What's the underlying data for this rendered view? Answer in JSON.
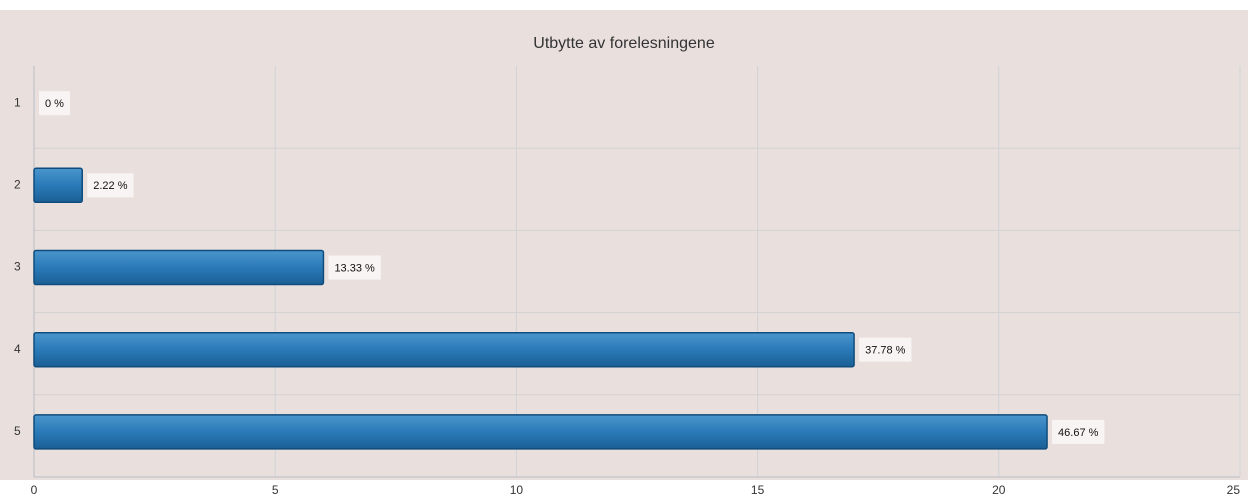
{
  "chart_data": {
    "type": "hbar",
    "title": "Utbytte av forelesningene",
    "categories": [
      "1",
      "2",
      "3",
      "4",
      "5"
    ],
    "values": [
      0,
      1,
      6,
      17,
      21
    ],
    "data_labels": [
      "0 %",
      "2.22 %",
      "13.33 %",
      "37.78 %",
      "46.67 %"
    ],
    "color": "#2471ab",
    "xlim": [
      0,
      25
    ],
    "xticks": [
      0,
      5,
      10,
      15,
      20,
      25
    ],
    "grid": true
  }
}
